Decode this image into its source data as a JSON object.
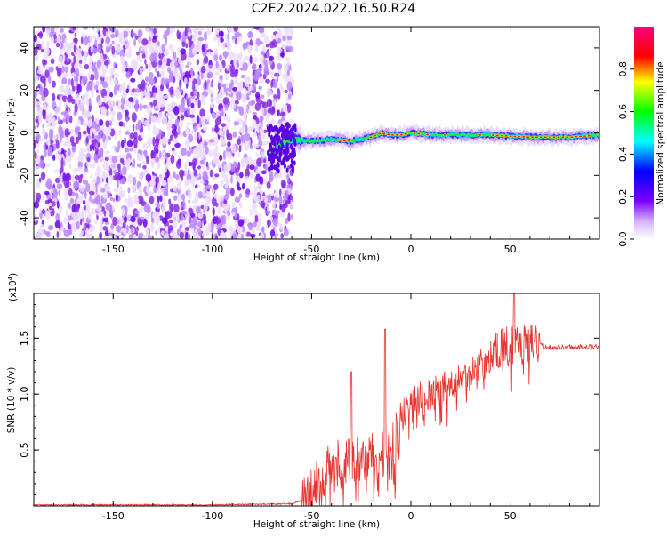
{
  "title": "C2E2.2024.022.16.50.R24",
  "spectrogram": {
    "xlabel": "Height of straight line (km)",
    "ylabel": "Frequency (Hz)",
    "xlim": [
      -190,
      95
    ],
    "ylim": [
      -50,
      50
    ],
    "xticks": [
      "-150",
      "-100",
      "-50",
      "0",
      "50"
    ],
    "yticks": [
      "-40",
      "-20",
      "0",
      "20",
      "40"
    ],
    "noise_end_km": -60,
    "signal_start_km": -70,
    "track": [
      [
        -70,
        -10
      ],
      [
        -65,
        -5
      ],
      [
        -60,
        -3
      ],
      [
        -50,
        -4
      ],
      [
        -40,
        -3
      ],
      [
        -30,
        -4
      ],
      [
        -20,
        -2
      ],
      [
        -15,
        0
      ],
      [
        -10,
        -1
      ],
      [
        -5,
        -1
      ],
      [
        0,
        0
      ],
      [
        10,
        -1
      ],
      [
        20,
        -1
      ],
      [
        40,
        -1
      ],
      [
        60,
        -2
      ],
      [
        80,
        -2
      ],
      [
        95,
        -1
      ]
    ],
    "colorbar": {
      "label": "Normalized spectral amplitude",
      "ticks": [
        "0.0",
        "0.2",
        "0.4",
        "0.6",
        "0.8"
      ],
      "range": [
        0,
        1
      ]
    }
  },
  "snr": {
    "xlabel": "Height of straight line (km)",
    "ylabel": "SNR (10 * v/v)",
    "scale_label": "(x10",
    "scale_exp": "4",
    "scale_close": ")",
    "xlim": [
      -190,
      95
    ],
    "ylim": [
      0,
      1.9
    ],
    "xticks": [
      "-150",
      "-100",
      "-50",
      "0",
      "50"
    ],
    "yticks": [
      "0.5",
      "1.0",
      "1.5"
    ],
    "line_color": "#e8332e",
    "profile": [
      [
        -190,
        0.01
      ],
      [
        -100,
        0.01
      ],
      [
        -60,
        0.02
      ],
      [
        -55,
        0.05
      ],
      [
        -50,
        0.1
      ],
      [
        -45,
        0.3
      ],
      [
        -40,
        0.4
      ],
      [
        -30,
        0.45
      ],
      [
        -25,
        0.4
      ],
      [
        -20,
        0.45
      ],
      [
        -10,
        0.45
      ],
      [
        -5,
        0.8
      ],
      [
        0,
        0.95
      ],
      [
        10,
        1.0
      ],
      [
        20,
        1.1
      ],
      [
        30,
        1.2
      ],
      [
        40,
        1.35
      ],
      [
        50,
        1.45
      ],
      [
        60,
        1.45
      ],
      [
        70,
        1.42
      ],
      [
        95,
        1.42
      ]
    ],
    "spikes": [
      [
        -30,
        1.2
      ],
      [
        -13,
        1.58
      ],
      [
        52,
        1.95
      ]
    ]
  }
}
